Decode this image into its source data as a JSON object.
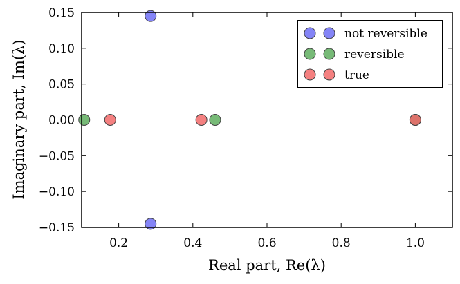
{
  "chart_data": {
    "type": "scatter",
    "title": "",
    "xlabel": "Real part, Re(λ)",
    "ylabel": "Imaginary part, Im(λ)",
    "xlim": [
      0.1,
      1.1
    ],
    "ylim": [
      -0.15,
      0.15
    ],
    "xticks": [
      "0.2",
      "0.4",
      "0.6",
      "0.8",
      "1.0"
    ],
    "xtick_values": [
      0.2,
      0.4,
      0.6,
      0.8,
      1.0
    ],
    "yticks": [
      "0.15",
      "0.10",
      "0.05",
      "0.00",
      "−0.05",
      "−0.10",
      "−0.15"
    ],
    "ytick_values": [
      0.15,
      0.1,
      0.05,
      0.0,
      -0.05,
      -0.1,
      -0.15
    ],
    "grid": false,
    "legend_position": "top-right",
    "series": [
      {
        "name": "not reversible",
        "color": "#6f6ff5",
        "points": [
          [
            0.286,
            0.145
          ],
          [
            0.286,
            -0.145
          ],
          [
            1.0,
            0.0
          ]
        ]
      },
      {
        "name": "reversible",
        "color": "#5fae5f",
        "points": [
          [
            0.107,
            0.0
          ],
          [
            0.46,
            0.0
          ],
          [
            1.0,
            0.0
          ]
        ]
      },
      {
        "name": "true",
        "color": "#f26a6a",
        "points": [
          [
            0.177,
            0.0
          ],
          [
            0.423,
            0.0
          ],
          [
            1.0,
            0.0
          ]
        ]
      }
    ]
  }
}
